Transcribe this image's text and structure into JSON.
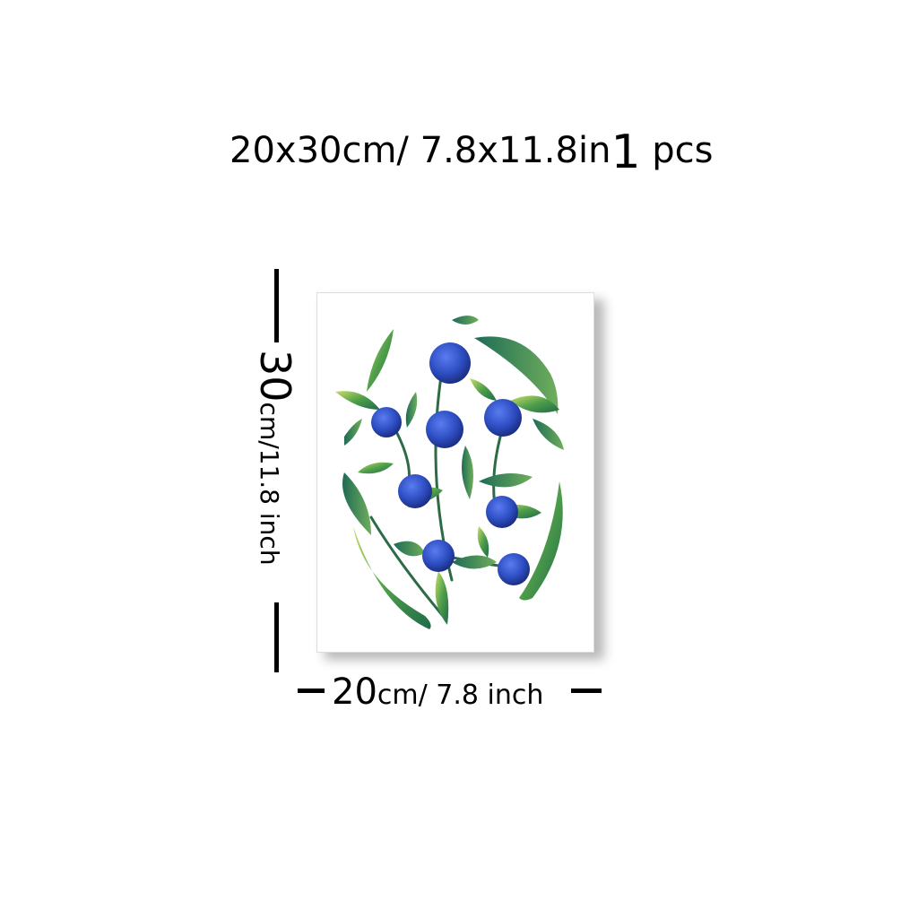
{
  "header": {
    "dimensions": "20x30cm/ 7.8x11.8in",
    "quantity": "1",
    "quantity_unit": "pcs"
  },
  "height_label": {
    "value": "30",
    "unit": "cm/11.8 inch"
  },
  "width_label": {
    "value": "20",
    "unit": "cm/ 7.8 inch"
  },
  "artwork": {
    "subject": "watercolor blueberries with green leaves",
    "berry_color": "#2f4fc4",
    "leaf_color": "#2f8a4a"
  }
}
